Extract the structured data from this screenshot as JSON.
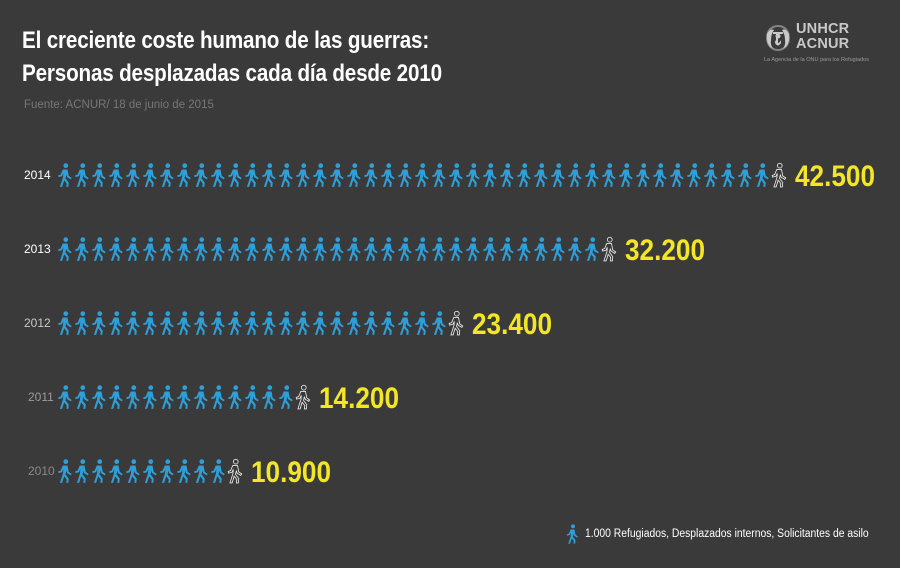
{
  "header": {
    "title_line1": "El creciente coste humano de las guerras:",
    "title_line2": "Personas desplazadas cada día desde 2010",
    "source": "Fuente: ACNUR/ 18 de junio de 2015"
  },
  "logo": {
    "line1": "UNHCR",
    "line2": "ACNUR",
    "tagline": "La Agencia de la ONU para los Refugiados",
    "icon": "unhcr-emblem-icon"
  },
  "legend": {
    "icon": "person-walking-icon",
    "text": "1.000 Refugiados, Desplazados internos, Solicitantes de asilo"
  },
  "colors": {
    "background": "#3a3a3a",
    "figure": "#2e9fd9",
    "value": "#f2e626",
    "partial_outline": "#e8e8e8"
  },
  "chart_data": {
    "type": "pictogram-bar",
    "unit": "1.000 personas por figura",
    "categories": [
      "2014",
      "2013",
      "2012",
      "2011",
      "2010"
    ],
    "values": [
      42500,
      32200,
      23400,
      14200,
      10900
    ],
    "value_labels": [
      "42.500",
      "32.200",
      "23.400",
      "14.200",
      "10.900"
    ],
    "category_colors": [
      "#ffffff",
      "#ffffff",
      "#c8c8c8",
      "#9a9a9a",
      "#8a8a8a"
    ]
  }
}
